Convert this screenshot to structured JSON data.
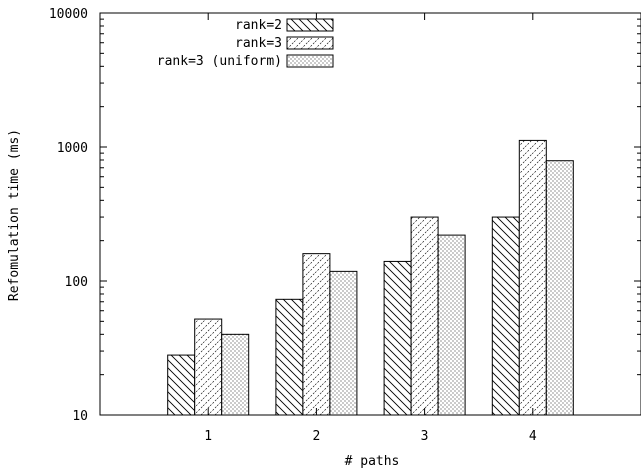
{
  "chart_data": {
    "type": "bar",
    "title": "",
    "xlabel": "# paths",
    "ylabel": "Refomulation time (ms)",
    "yscale": "log",
    "ylim": [
      10,
      10000
    ],
    "y_ticks": [
      "10",
      "100",
      "1000",
      "10000"
    ],
    "categories": [
      "1",
      "2",
      "3",
      "4"
    ],
    "series": [
      {
        "name": "rank=2",
        "pattern": "hatch-back",
        "values": [
          28,
          73,
          140,
          300
        ]
      },
      {
        "name": "rank=3",
        "pattern": "hatch-fwd",
        "values": [
          52,
          160,
          300,
          1120
        ]
      },
      {
        "name": "rank=3 (uniform)",
        "pattern": "dots",
        "values": [
          40,
          118,
          220,
          790
        ]
      }
    ],
    "legend_position": "top-right",
    "grid": false
  }
}
